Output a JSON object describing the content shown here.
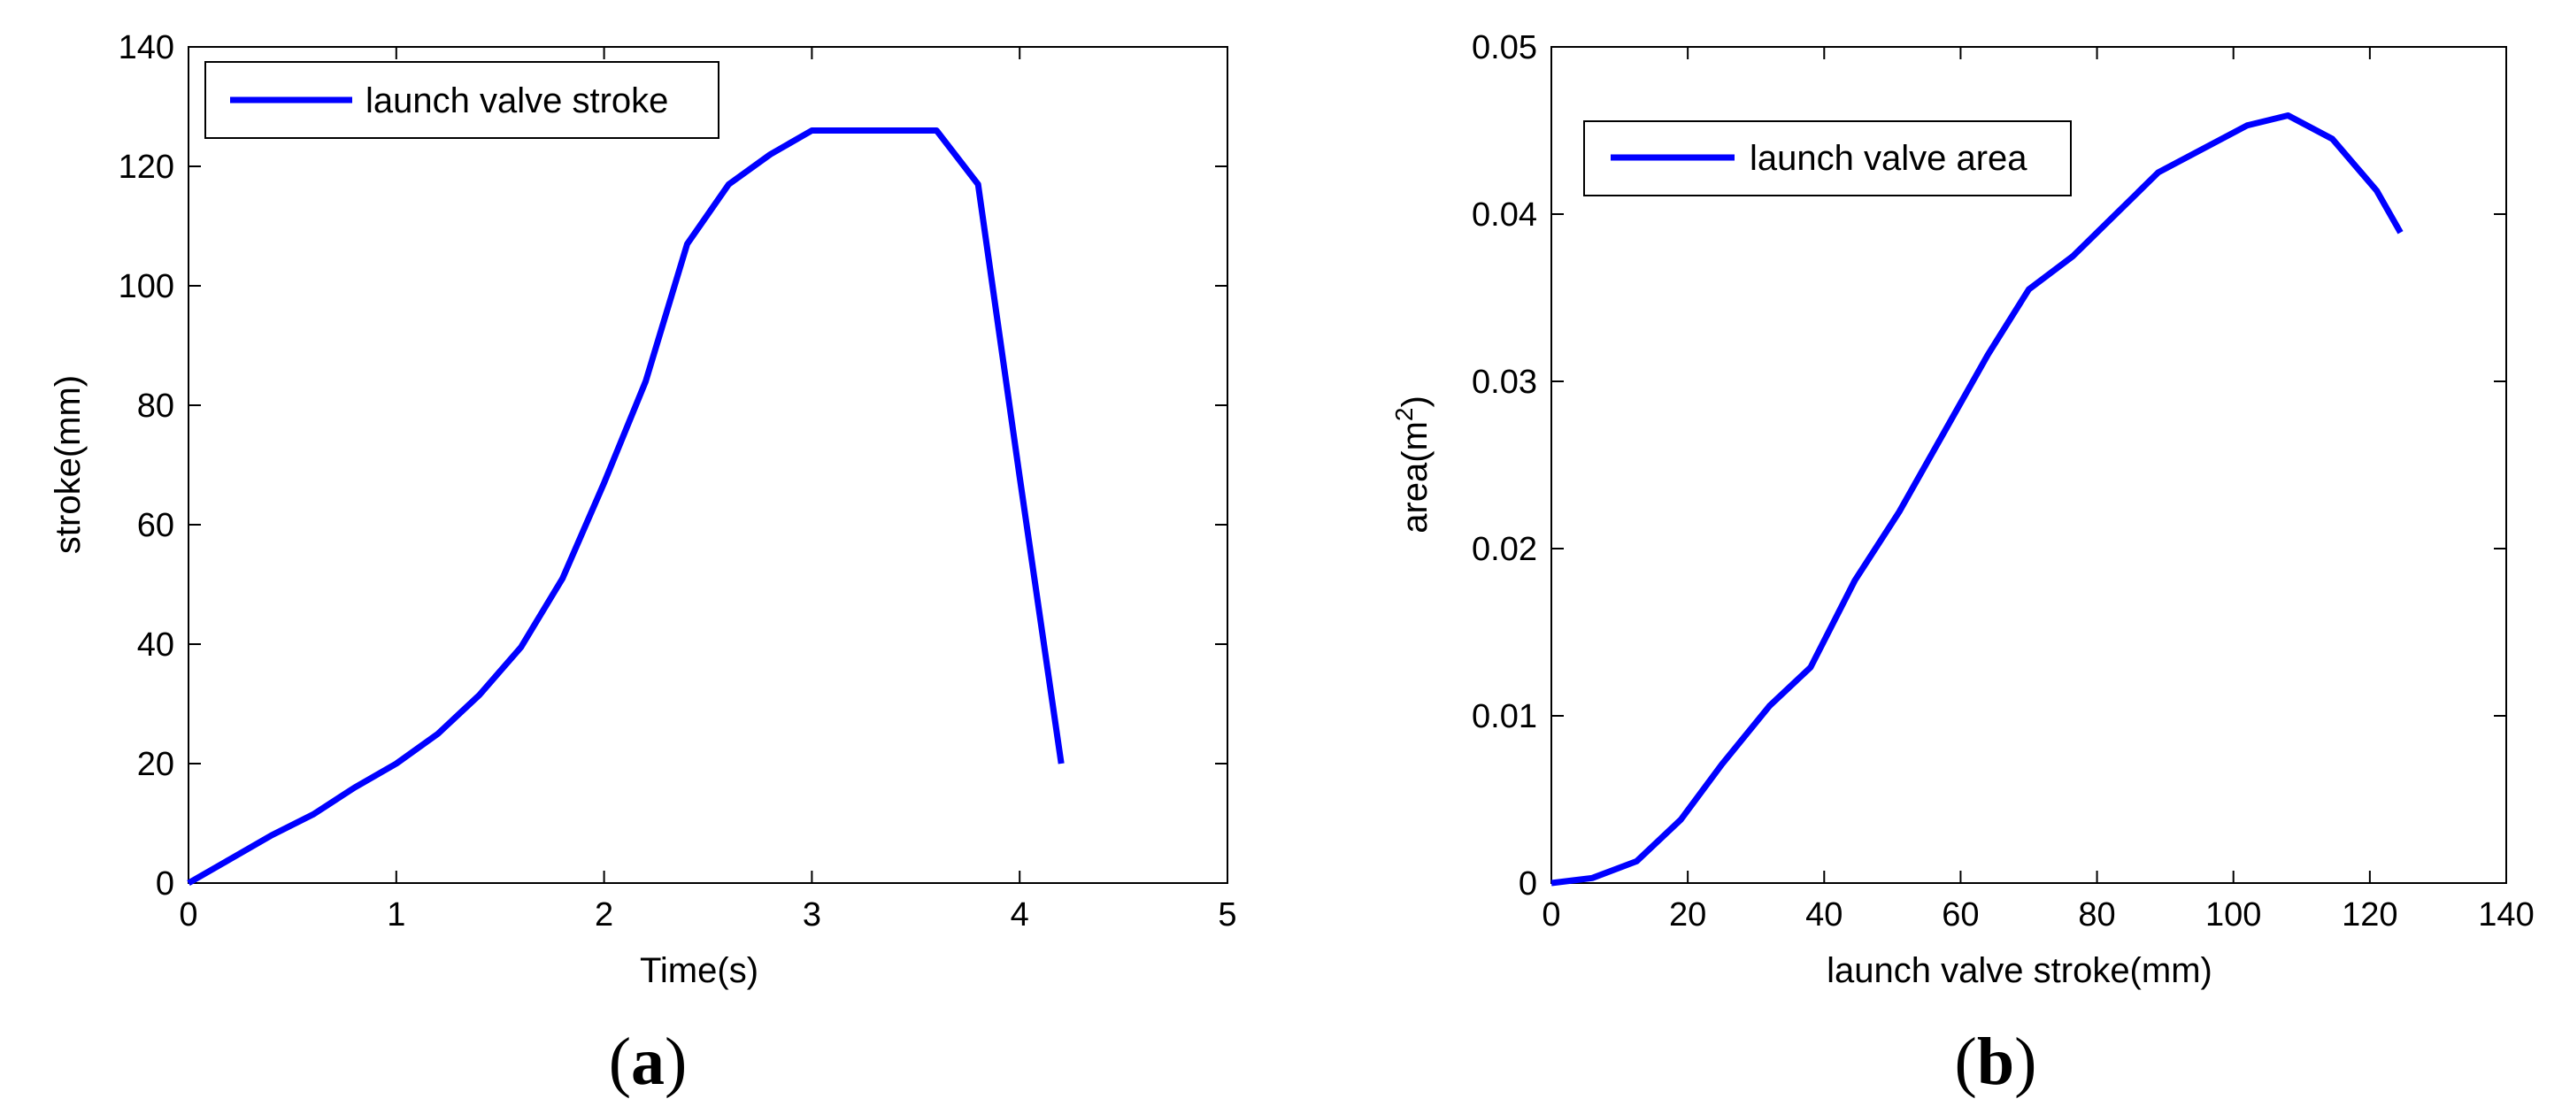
{
  "colors": {
    "line": "#0000FF",
    "axis": "#000000",
    "background": "#FFFFFF"
  },
  "chart_data": [
    {
      "type": "line",
      "panel_label": "a",
      "xlabel": "Time(s)",
      "ylabel": "stroke(mm)",
      "xlim": [
        0,
        5
      ],
      "ylim": [
        0,
        140
      ],
      "xticks": [
        0,
        1,
        2,
        3,
        4,
        5
      ],
      "yticks": [
        0,
        20,
        40,
        60,
        80,
        100,
        120,
        140
      ],
      "xtick_labels": [
        "0",
        "1",
        "2",
        "3",
        "4",
        "5"
      ],
      "ytick_labels": [
        "0",
        "20",
        "40",
        "60",
        "80",
        "100",
        "120",
        "140"
      ],
      "grid": false,
      "legend_position": "top-left",
      "series": [
        {
          "name": "launch valve stroke",
          "x": [
            0,
            0.2,
            0.4,
            0.6,
            0.8,
            1.0,
            1.2,
            1.4,
            1.6,
            1.8,
            2.0,
            2.2,
            2.4,
            2.6,
            2.8,
            3.0,
            3.2,
            3.4,
            3.6,
            3.8,
            4.0,
            4.2
          ],
          "y": [
            0,
            4,
            8,
            11.5,
            16,
            20,
            25,
            31.5,
            39.5,
            51,
            67,
            84,
            107,
            117,
            122,
            126,
            126,
            126,
            126,
            117,
            68,
            20
          ]
        }
      ]
    },
    {
      "type": "line",
      "panel_label": "b",
      "xlabel": "launch valve stroke(mm)",
      "ylabel_main": "area(m",
      "ylabel_sup": "2",
      "ylabel_end": ")",
      "xlim": [
        0,
        140
      ],
      "ylim": [
        0,
        0.05
      ],
      "xticks": [
        0,
        20,
        40,
        60,
        80,
        100,
        120,
        140
      ],
      "yticks": [
        0,
        0.01,
        0.02,
        0.03,
        0.04,
        0.05
      ],
      "xtick_labels": [
        "0",
        "20",
        "40",
        "60",
        "80",
        "100",
        "120",
        "140"
      ],
      "ytick_labels": [
        "0",
        "0.01",
        "0.02",
        "0.03",
        "0.04",
        "0.05"
      ],
      "grid": false,
      "legend_position": "top-left",
      "series": [
        {
          "name": "launch valve area",
          "x": [
            0,
            6,
            12.5,
            19,
            25,
            32,
            38,
            44.5,
            51,
            57.5,
            64,
            70,
            76.5,
            83,
            89,
            95.5,
            102,
            108,
            114.5,
            121,
            124.5
          ],
          "y": [
            0,
            0.0003,
            0.0013,
            0.0038,
            0.0071,
            0.0106,
            0.0129,
            0.0181,
            0.0222,
            0.0269,
            0.0316,
            0.0355,
            0.0375,
            0.0401,
            0.0425,
            0.0439,
            0.0453,
            0.0459,
            0.0445,
            0.0414,
            0.0389
          ]
        }
      ]
    }
  ]
}
